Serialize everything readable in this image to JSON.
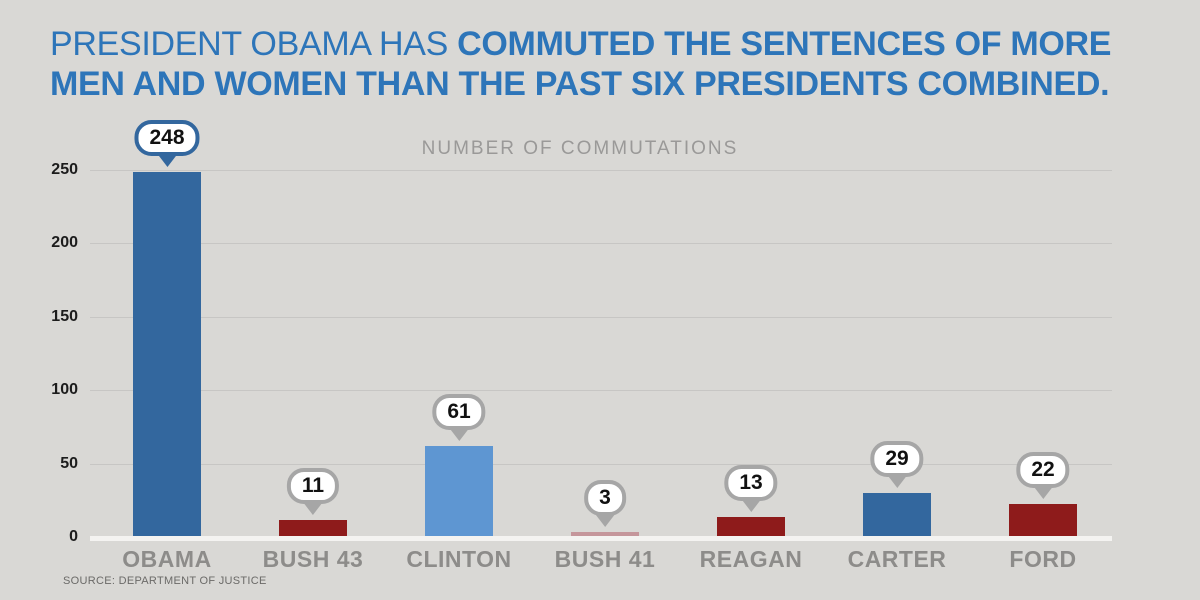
{
  "headline": {
    "line1_regular": "PRESIDENT OBAMA HAS ",
    "line1_bold": "COMMUTED THE SENTENCES OF MORE",
    "line2_bold": "MEN AND WOMEN THAN THE PAST SIX PRESIDENTS COMBINED."
  },
  "source": "SOURCE: DEPARTMENT OF JUSTICE",
  "colors": {
    "background": "#d9d8d5",
    "headline_blue": "#2d75b9",
    "dark_blue_bar": "#33679e",
    "light_blue_bar": "#5e96d2",
    "dark_red_bar": "#8e1b1b",
    "light_red_bar": "#c5969b",
    "callout_gray_border": "#a6a6a6",
    "gridline": "#c7c6c4",
    "baseline_white": "#f4f3f1"
  },
  "chart_data": {
    "type": "bar",
    "title": "NUMBER OF COMMUTATIONS",
    "categories": [
      "OBAMA",
      "BUSH 43",
      "CLINTON",
      "BUSH 41",
      "REAGAN",
      "CARTER",
      "FORD"
    ],
    "values": [
      248,
      11,
      61,
      3,
      13,
      29,
      22
    ],
    "bar_colors": [
      "#33679e",
      "#8e1b1b",
      "#5e96d2",
      "#c5969b",
      "#8e1b1b",
      "#33679e",
      "#8e1b1b"
    ],
    "callout_colors": [
      "#33679e",
      "#a6a6a6",
      "#a6a6a6",
      "#a6a6a6",
      "#a6a6a6",
      "#a6a6a6",
      "#a6a6a6"
    ],
    "xlabel": "",
    "ylabel": "",
    "ylim": [
      0,
      250
    ],
    "yticks": [
      0,
      50,
      100,
      150,
      200,
      250
    ],
    "grid": true,
    "data_labels": true,
    "legend": false
  }
}
